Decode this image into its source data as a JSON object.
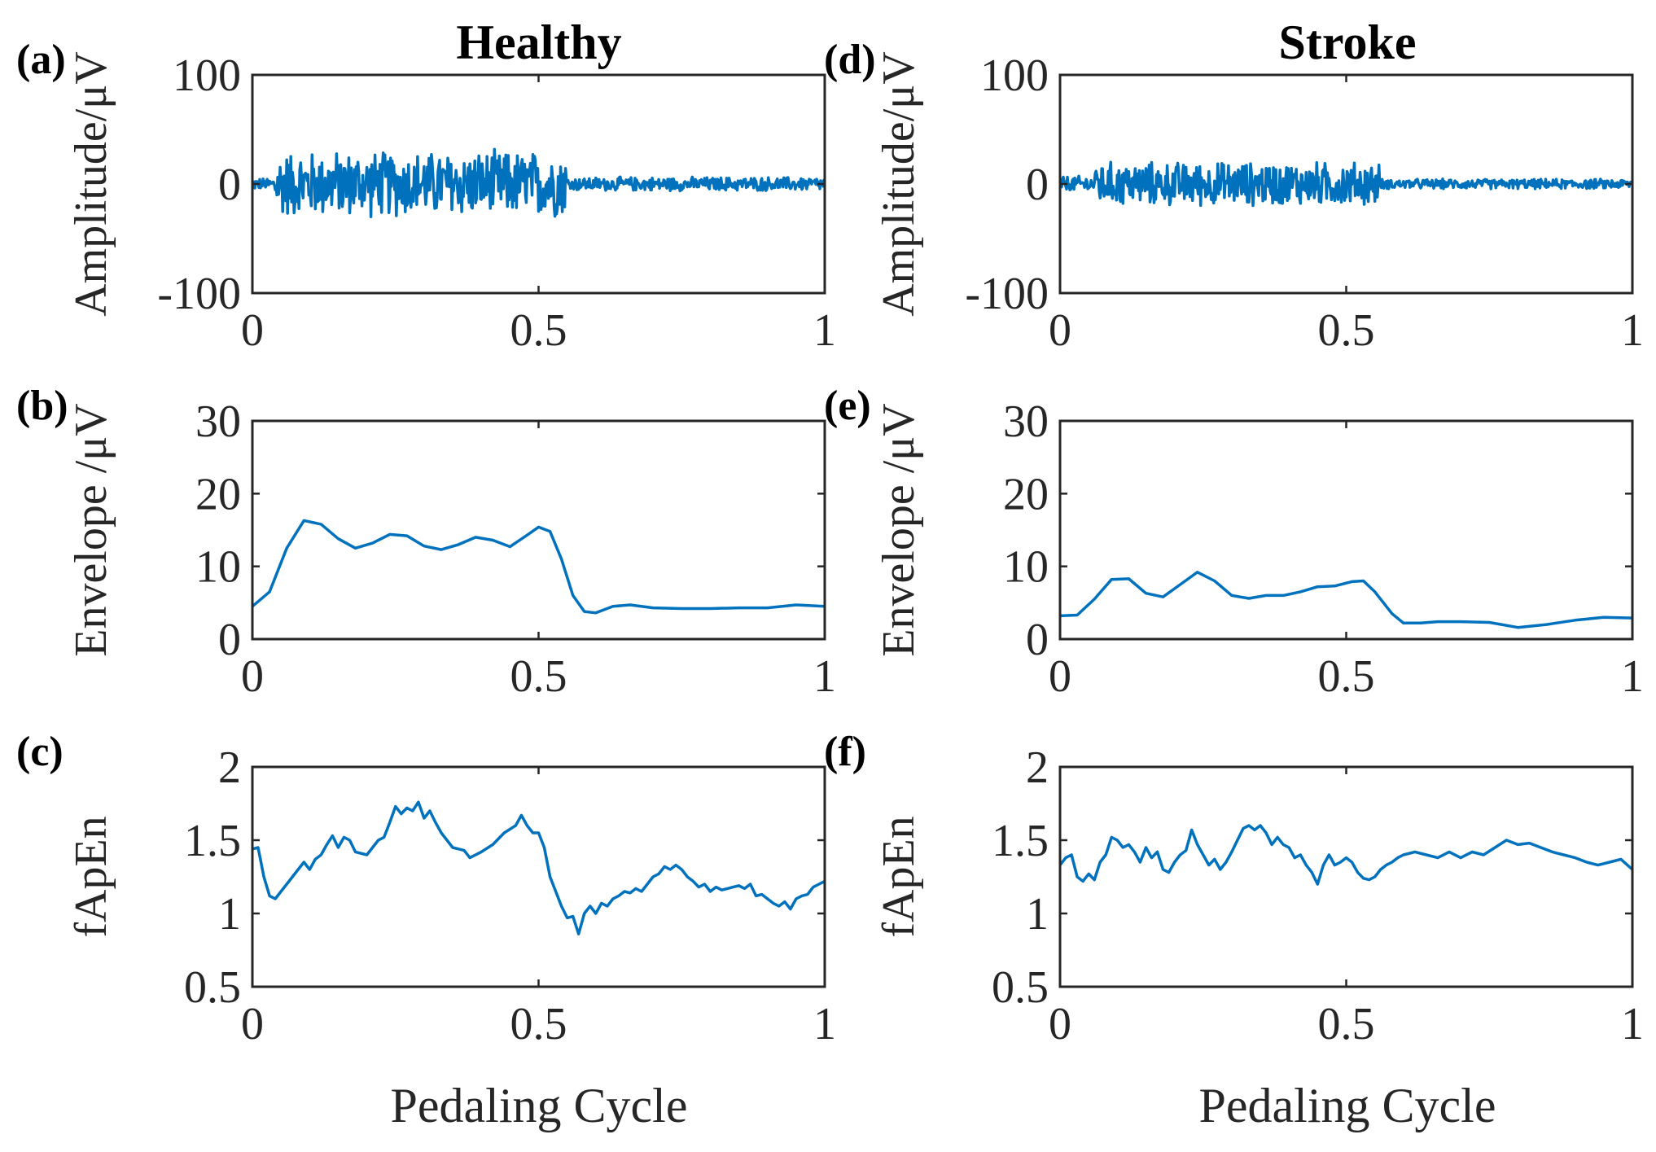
{
  "column_titles": [
    "Healthy",
    "Stroke"
  ],
  "x_axis_label": "Pedaling Cycle",
  "series_color": "#0072BD",
  "chart_data": [
    {
      "panel": "(a)",
      "column": "Healthy",
      "type": "line",
      "ylabel": "Amplitude/μV",
      "xlim": [
        0,
        1
      ],
      "ylim": [
        -100,
        100
      ],
      "xticks": [
        0,
        0.5,
        1
      ],
      "xtick_labels": [
        "0",
        "0.5",
        "1"
      ],
      "yticks": [
        -100,
        0,
        100
      ],
      "ytick_labels": [
        "-100",
        "0",
        "100"
      ],
      "signal": "raw EMG",
      "segments": [
        {
          "x_start": 0.0,
          "x_end": 0.04,
          "amplitude": 6
        },
        {
          "x_start": 0.04,
          "x_end": 0.55,
          "amplitude": 33
        },
        {
          "x_start": 0.55,
          "x_end": 1.0,
          "amplitude": 7
        }
      ]
    },
    {
      "panel": "(b)",
      "column": "Healthy",
      "type": "line",
      "ylabel": "Envelope /μV",
      "xlim": [
        0,
        1
      ],
      "ylim": [
        0,
        30
      ],
      "xticks": [
        0,
        0.5,
        1
      ],
      "xtick_labels": [
        "0",
        "0.5",
        "1"
      ],
      "yticks": [
        0,
        10,
        20,
        30
      ],
      "ytick_labels": [
        "0",
        "10",
        "20",
        "30"
      ],
      "x": [
        0,
        0.03,
        0.06,
        0.09,
        0.12,
        0.15,
        0.18,
        0.21,
        0.24,
        0.27,
        0.3,
        0.33,
        0.36,
        0.39,
        0.42,
        0.45,
        0.48,
        0.5,
        0.52,
        0.54,
        0.56,
        0.58,
        0.6,
        0.63,
        0.66,
        0.7,
        0.75,
        0.8,
        0.85,
        0.9,
        0.95,
        1.0
      ],
      "y": [
        4.5,
        6.5,
        12.5,
        16.3,
        15.8,
        13.8,
        12.5,
        13.2,
        14.4,
        14.2,
        12.8,
        12.3,
        13.0,
        14.0,
        13.6,
        12.7,
        14.3,
        15.4,
        14.8,
        11.0,
        6.0,
        3.8,
        3.6,
        4.5,
        4.7,
        4.3,
        4.2,
        4.2,
        4.3,
        4.3,
        4.7,
        4.5
      ]
    },
    {
      "panel": "(c)",
      "column": "Healthy",
      "type": "line",
      "ylabel": "fApEn",
      "xlim": [
        0,
        1
      ],
      "ylim": [
        0.5,
        2
      ],
      "xticks": [
        0,
        0.5,
        1
      ],
      "xtick_labels": [
        "0",
        "0.5",
        "1"
      ],
      "yticks": [
        0.5,
        1,
        1.5,
        2
      ],
      "ytick_labels": [
        "0.5",
        "1",
        "1.5",
        "2"
      ],
      "x": [
        0,
        0.01,
        0.02,
        0.03,
        0.04,
        0.05,
        0.06,
        0.08,
        0.09,
        0.1,
        0.11,
        0.12,
        0.13,
        0.14,
        0.15,
        0.16,
        0.17,
        0.18,
        0.2,
        0.21,
        0.22,
        0.23,
        0.24,
        0.25,
        0.26,
        0.27,
        0.28,
        0.29,
        0.3,
        0.31,
        0.32,
        0.33,
        0.35,
        0.37,
        0.38,
        0.4,
        0.42,
        0.44,
        0.46,
        0.47,
        0.48,
        0.49,
        0.5,
        0.51,
        0.52,
        0.53,
        0.54,
        0.55,
        0.56,
        0.57,
        0.58,
        0.59,
        0.6,
        0.61,
        0.62,
        0.63,
        0.64,
        0.65,
        0.66,
        0.67,
        0.68,
        0.69,
        0.7,
        0.71,
        0.72,
        0.73,
        0.74,
        0.75,
        0.76,
        0.77,
        0.78,
        0.79,
        0.8,
        0.81,
        0.82,
        0.83,
        0.84,
        0.85,
        0.86,
        0.87,
        0.88,
        0.89,
        0.9,
        0.91,
        0.92,
        0.93,
        0.94,
        0.95,
        0.96,
        0.97,
        0.98,
        0.99,
        1.0
      ],
      "y": [
        1.44,
        1.45,
        1.25,
        1.12,
        1.1,
        1.15,
        1.2,
        1.3,
        1.35,
        1.3,
        1.37,
        1.4,
        1.47,
        1.53,
        1.45,
        1.52,
        1.5,
        1.42,
        1.4,
        1.45,
        1.5,
        1.52,
        1.62,
        1.73,
        1.68,
        1.72,
        1.7,
        1.76,
        1.65,
        1.7,
        1.62,
        1.55,
        1.45,
        1.43,
        1.38,
        1.42,
        1.47,
        1.55,
        1.6,
        1.67,
        1.6,
        1.55,
        1.55,
        1.45,
        1.25,
        1.15,
        1.05,
        0.97,
        0.98,
        0.86,
        1.0,
        1.05,
        1.0,
        1.07,
        1.05,
        1.1,
        1.12,
        1.15,
        1.14,
        1.17,
        1.15,
        1.2,
        1.25,
        1.27,
        1.32,
        1.3,
        1.33,
        1.3,
        1.25,
        1.22,
        1.18,
        1.2,
        1.15,
        1.18,
        1.16,
        1.17,
        1.18,
        1.19,
        1.17,
        1.2,
        1.12,
        1.13,
        1.1,
        1.07,
        1.05,
        1.08,
        1.03,
        1.1,
        1.12,
        1.13,
        1.18,
        1.2,
        1.22
      ]
    },
    {
      "panel": "(d)",
      "column": "Stroke",
      "type": "line",
      "ylabel": "Amplitude/μV",
      "xlim": [
        0,
        1
      ],
      "ylim": [
        -100,
        100
      ],
      "xticks": [
        0,
        0.5,
        1
      ],
      "xtick_labels": [
        "0",
        "0.5",
        "1"
      ],
      "yticks": [
        -100,
        0,
        100
      ],
      "ytick_labels": [
        "-100",
        "0",
        "100"
      ],
      "signal": "raw EMG",
      "segments": [
        {
          "x_start": 0.0,
          "x_end": 0.06,
          "amplitude": 8
        },
        {
          "x_start": 0.06,
          "x_end": 0.56,
          "amplitude": 22
        },
        {
          "x_start": 0.56,
          "x_end": 1.0,
          "amplitude": 5
        }
      ]
    },
    {
      "panel": "(e)",
      "column": "Stroke",
      "type": "line",
      "ylabel": "Envelope /μV",
      "xlim": [
        0,
        1
      ],
      "ylim": [
        0,
        30
      ],
      "xticks": [
        0,
        0.5,
        1
      ],
      "xtick_labels": [
        "0",
        "0.5",
        "1"
      ],
      "yticks": [
        0,
        10,
        20,
        30
      ],
      "ytick_labels": [
        "0",
        "10",
        "20",
        "30"
      ],
      "x": [
        0,
        0.03,
        0.06,
        0.09,
        0.12,
        0.15,
        0.18,
        0.21,
        0.24,
        0.27,
        0.3,
        0.33,
        0.36,
        0.39,
        0.42,
        0.45,
        0.48,
        0.51,
        0.53,
        0.55,
        0.58,
        0.6,
        0.63,
        0.66,
        0.7,
        0.75,
        0.8,
        0.85,
        0.9,
        0.95,
        1.0
      ],
      "y": [
        3.2,
        3.3,
        5.5,
        8.2,
        8.3,
        6.3,
        5.8,
        7.5,
        9.2,
        8.0,
        6.0,
        5.6,
        6.0,
        6.0,
        6.5,
        7.2,
        7.3,
        7.9,
        8.0,
        6.5,
        3.5,
        2.2,
        2.2,
        2.4,
        2.4,
        2.3,
        1.6,
        2.0,
        2.6,
        3.0,
        2.9
      ]
    },
    {
      "panel": "(f)",
      "column": "Stroke",
      "type": "line",
      "ylabel": "fApEn",
      "xlim": [
        0,
        1
      ],
      "ylim": [
        0.5,
        2
      ],
      "xticks": [
        0,
        0.5,
        1
      ],
      "xtick_labels": [
        "0",
        "0.5",
        "1"
      ],
      "yticks": [
        0.5,
        1,
        1.5,
        2
      ],
      "ytick_labels": [
        "0.5",
        "1",
        "1.5",
        "2"
      ],
      "x": [
        0,
        0.01,
        0.02,
        0.03,
        0.04,
        0.05,
        0.06,
        0.07,
        0.08,
        0.09,
        0.1,
        0.11,
        0.12,
        0.13,
        0.14,
        0.15,
        0.16,
        0.17,
        0.18,
        0.19,
        0.2,
        0.21,
        0.22,
        0.23,
        0.24,
        0.25,
        0.26,
        0.27,
        0.28,
        0.29,
        0.3,
        0.31,
        0.32,
        0.33,
        0.34,
        0.35,
        0.36,
        0.37,
        0.38,
        0.39,
        0.4,
        0.41,
        0.42,
        0.43,
        0.44,
        0.45,
        0.46,
        0.47,
        0.48,
        0.49,
        0.5,
        0.51,
        0.52,
        0.53,
        0.54,
        0.55,
        0.56,
        0.57,
        0.58,
        0.59,
        0.6,
        0.62,
        0.64,
        0.66,
        0.68,
        0.7,
        0.72,
        0.74,
        0.76,
        0.78,
        0.8,
        0.82,
        0.84,
        0.86,
        0.88,
        0.9,
        0.92,
        0.94,
        0.96,
        0.98,
        1.0
      ],
      "y": [
        1.33,
        1.38,
        1.4,
        1.25,
        1.22,
        1.27,
        1.23,
        1.35,
        1.4,
        1.52,
        1.5,
        1.45,
        1.47,
        1.42,
        1.35,
        1.45,
        1.38,
        1.42,
        1.3,
        1.28,
        1.35,
        1.4,
        1.43,
        1.57,
        1.47,
        1.4,
        1.33,
        1.37,
        1.3,
        1.35,
        1.42,
        1.5,
        1.58,
        1.6,
        1.57,
        1.6,
        1.55,
        1.47,
        1.52,
        1.47,
        1.45,
        1.38,
        1.4,
        1.33,
        1.28,
        1.2,
        1.33,
        1.4,
        1.33,
        1.35,
        1.38,
        1.35,
        1.28,
        1.24,
        1.23,
        1.25,
        1.3,
        1.33,
        1.35,
        1.38,
        1.4,
        1.42,
        1.4,
        1.38,
        1.42,
        1.38,
        1.42,
        1.4,
        1.45,
        1.5,
        1.47,
        1.48,
        1.45,
        1.42,
        1.4,
        1.38,
        1.35,
        1.33,
        1.35,
        1.37,
        1.3
      ]
    }
  ]
}
